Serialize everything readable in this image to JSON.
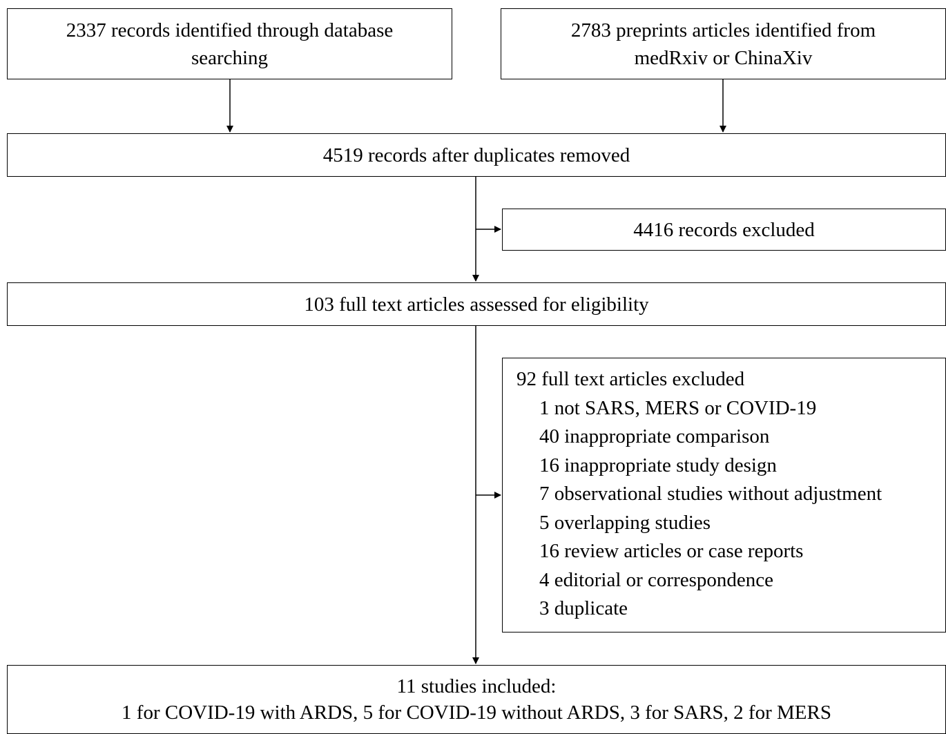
{
  "boxes": {
    "database": {
      "lines": [
        "2337 records identified through database",
        "searching"
      ]
    },
    "preprints": {
      "lines": [
        "2783 preprints articles identified from",
        "medRxiv or ChinaXiv"
      ]
    },
    "deduplicated": {
      "text": "4519 records after duplicates removed"
    },
    "records_excluded": {
      "text": "4416 records excluded"
    },
    "full_text_assessed": {
      "text": "103 full text articles assessed for eligibility"
    },
    "full_text_excluded": {
      "heading": "92 full text articles excluded",
      "reasons": [
        "1 not SARS, MERS or COVID-19",
        "40 inappropriate comparison",
        "16 inappropriate study design",
        "7 observational studies without adjustment",
        "5 overlapping studies",
        "16 review articles or case reports",
        "4 editorial or correspondence",
        "3 duplicate"
      ]
    },
    "included": {
      "lines": [
        "11 studies included:",
        "1 for COVID-19 with ARDS, 5 for COVID-19 without ARDS, 3 for SARS, 2 for MERS"
      ]
    }
  }
}
